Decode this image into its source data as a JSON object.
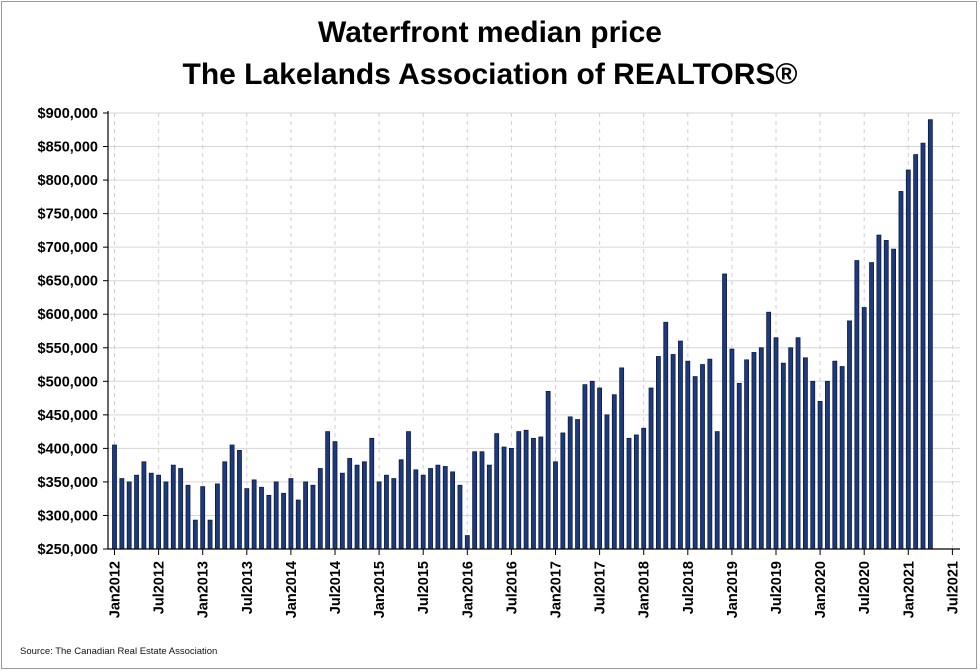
{
  "chart_data": {
    "type": "bar",
    "title": "Waterfront median price",
    "subtitle": "The Lakelands Association of REALTORS®",
    "xlabel": "",
    "ylabel": "",
    "source": "Source: The Canadian Real Estate Association",
    "ylim": [
      250000,
      900000
    ],
    "y_ticks": [
      250000,
      300000,
      350000,
      400000,
      450000,
      500000,
      550000,
      600000,
      650000,
      700000,
      750000,
      800000,
      850000,
      900000
    ],
    "y_tick_labels": [
      "$250,000",
      "$300,000",
      "$350,000",
      "$400,000",
      "$450,000",
      "$500,000",
      "$550,000",
      "$600,000",
      "$650,000",
      "$700,000",
      "$750,000",
      "$800,000",
      "$850,000",
      "$900,000"
    ],
    "x_tick_labels": [
      "Jan2012",
      "Jul2012",
      "Jan2013",
      "Jul2013",
      "Jan2014",
      "Jul2014",
      "Jan2015",
      "Jul2015",
      "Jan2016",
      "Jul2016",
      "Jan2017",
      "Jul2017",
      "Jan2018",
      "Jul2018",
      "Jan2019",
      "Jul2019",
      "Jan2020",
      "Jul2020",
      "Jan2021",
      "Jul2021"
    ],
    "grid": true,
    "bar_color": "#1f3a7a",
    "series": [
      {
        "values": [
          405000,
          355000,
          350000,
          360000,
          380000,
          363000,
          360000,
          350000,
          375000,
          370000,
          345000,
          293000,
          343000,
          293000,
          347000,
          380000,
          405000,
          397000,
          340000,
          353000,
          342000,
          330000,
          350000,
          333000,
          355000,
          323000,
          350000,
          345000,
          370000,
          425000,
          410000,
          363000,
          385000,
          375000,
          380000,
          415000,
          350000,
          360000,
          355000,
          383000,
          425000,
          368000,
          360000,
          370000,
          375000,
          373000,
          365000,
          345000,
          270000,
          395000,
          395000,
          375000,
          422000,
          402000,
          400000,
          425000,
          427000,
          415000,
          417000,
          485000,
          380000,
          423000,
          447000,
          443000,
          495000,
          500000,
          490000,
          450000,
          480000,
          520000,
          415000,
          420000,
          430000,
          490000,
          537000,
          588000,
          540000,
          560000,
          530000,
          507000,
          525000,
          533000,
          425000,
          660000,
          548000,
          497000,
          532000,
          543000,
          550000,
          603000,
          565000,
          527000,
          550000,
          565000,
          535000,
          500000,
          470000,
          500000,
          530000,
          522000,
          590000,
          680000,
          610000,
          677000,
          718000,
          710000,
          697000,
          783000,
          815000,
          838000,
          855000,
          890000
        ]
      }
    ]
  }
}
